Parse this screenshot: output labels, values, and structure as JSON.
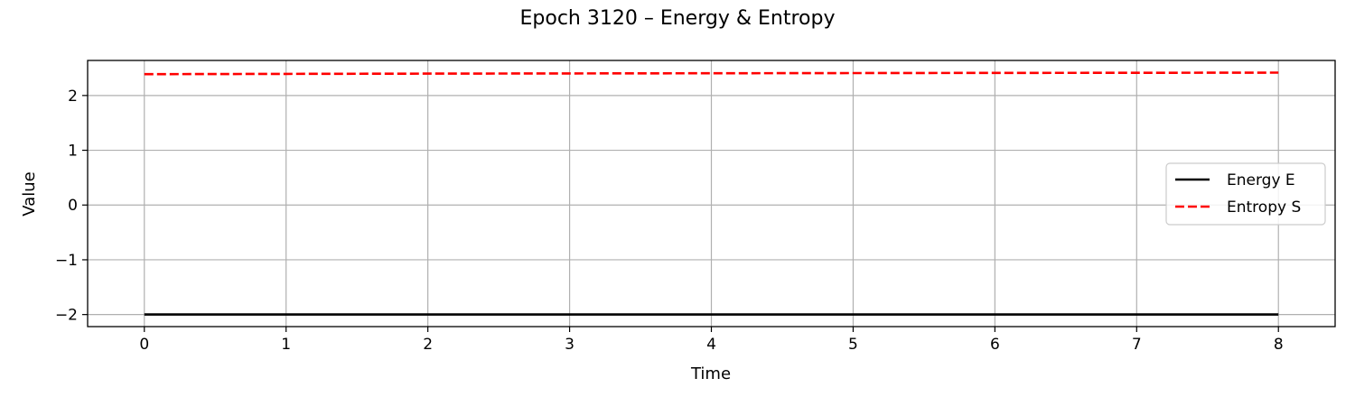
{
  "chart_data": {
    "type": "line",
    "title": "Epoch 3120 – Energy & Entropy",
    "xlabel": "Time",
    "ylabel": "Value",
    "xlim": [
      -0.4,
      8.4
    ],
    "ylim": [
      -2.22,
      2.64
    ],
    "xticks": [
      0,
      1,
      2,
      3,
      4,
      5,
      6,
      7,
      8
    ],
    "xtick_labels": [
      "0",
      "1",
      "2",
      "3",
      "4",
      "5",
      "6",
      "7",
      "8"
    ],
    "yticks": [
      -2,
      -1,
      0,
      1,
      2
    ],
    "ytick_labels": [
      "−2",
      "−1",
      "0",
      "1",
      "2"
    ],
    "grid": true,
    "legend_position": "center-right",
    "series": [
      {
        "name": "Energy E",
        "color": "#000000",
        "style": "solid",
        "x": [
          0,
          1,
          2,
          3,
          4,
          5,
          6,
          7,
          8
        ],
        "y": [
          -2.0,
          -2.0,
          -2.0,
          -2.0,
          -2.0,
          -2.0,
          -2.0,
          -2.0,
          -2.0
        ]
      },
      {
        "name": "Entropy S",
        "color": "#ff0000",
        "style": "dashed",
        "x": [
          0,
          1,
          2,
          3,
          4,
          5,
          6,
          7,
          8
        ],
        "y": [
          2.39,
          2.395,
          2.4,
          2.403,
          2.406,
          2.409,
          2.412,
          2.415,
          2.418
        ]
      }
    ]
  }
}
